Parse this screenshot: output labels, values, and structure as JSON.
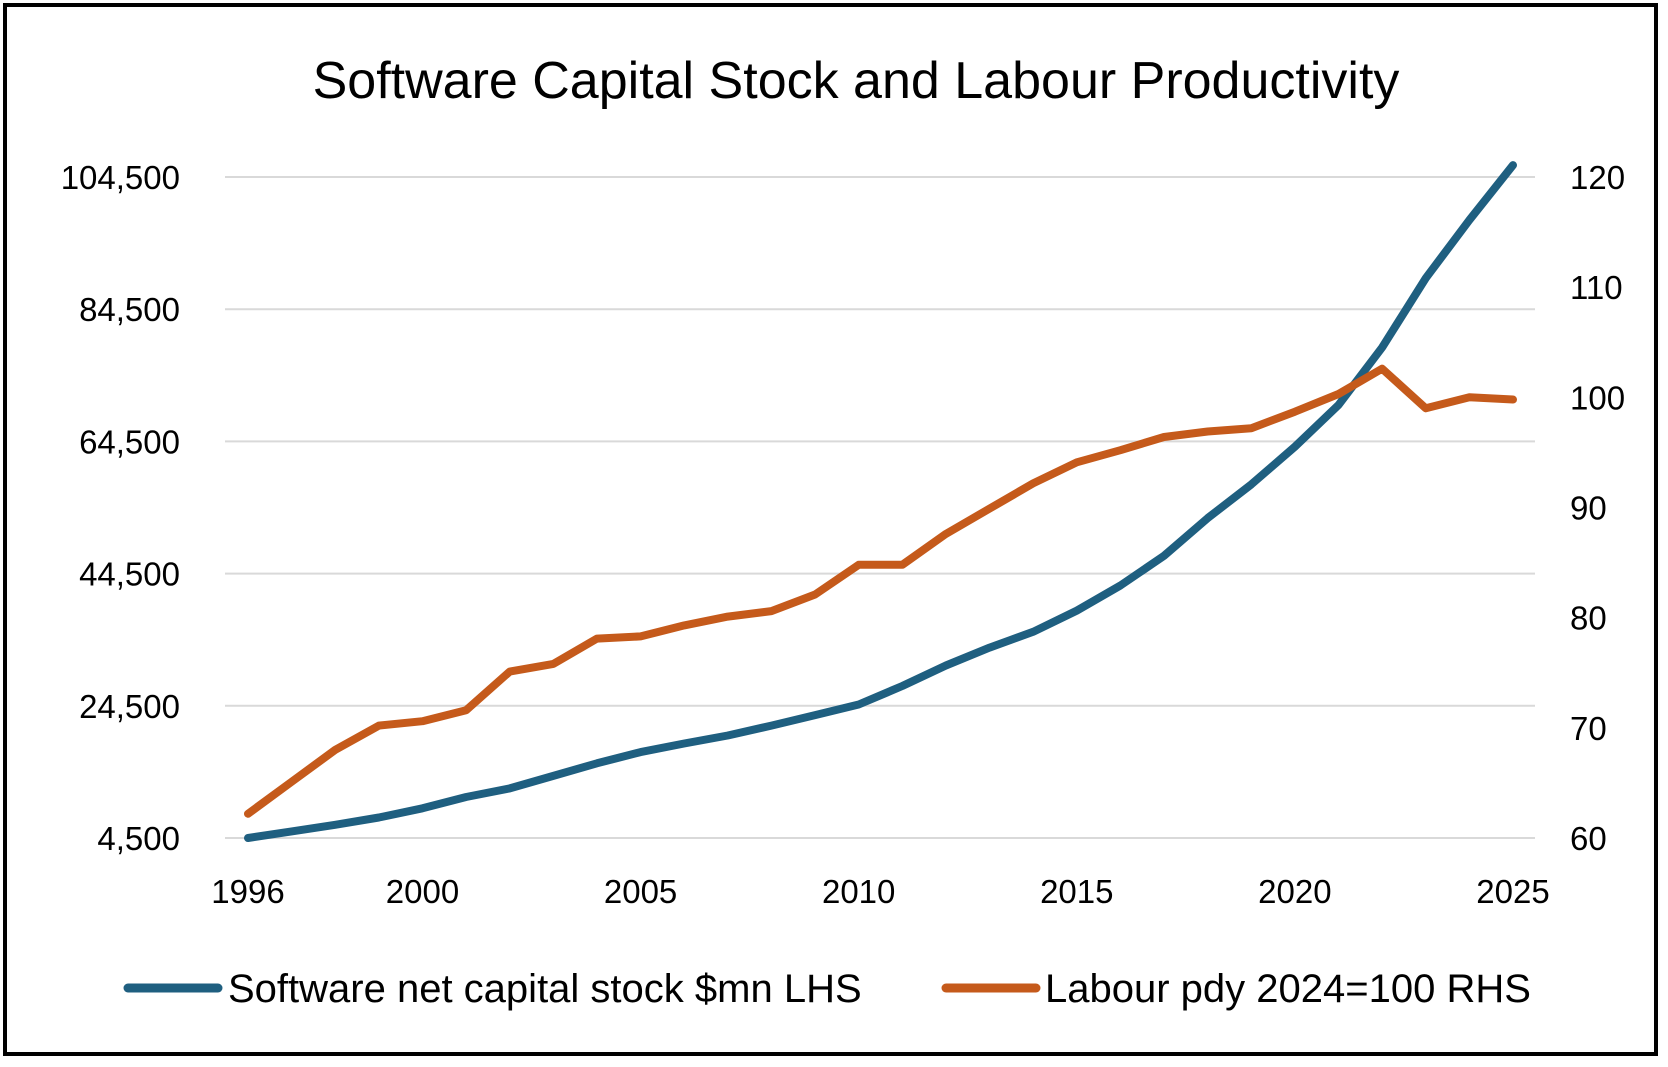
{
  "chart_data": {
    "type": "line",
    "title": "Software Capital Stock and Labour Productivity",
    "x": [
      1996,
      1997,
      1998,
      1999,
      2000,
      2001,
      2002,
      2003,
      2004,
      2005,
      2006,
      2007,
      2008,
      2009,
      2010,
      2011,
      2012,
      2013,
      2014,
      2015,
      2016,
      2017,
      2018,
      2019,
      2020,
      2021,
      2022,
      2023,
      2024,
      2025
    ],
    "x_ticks": [
      1996,
      2000,
      2005,
      2010,
      2015,
      2020,
      2025
    ],
    "x_tick_labels": [
      "1996",
      "2000",
      "2005",
      "2010",
      "2015",
      "2020",
      "2025"
    ],
    "y_left": {
      "ylim": [
        4500,
        104500
      ],
      "ticks": [
        4500,
        24500,
        44500,
        64500,
        84500,
        104500
      ],
      "tick_labels": [
        "4,500",
        "24,500",
        "44,500",
        "64,500",
        "84,500",
        "104,500"
      ]
    },
    "y_right": {
      "ylim": [
        60,
        120
      ],
      "ticks": [
        60,
        70,
        80,
        90,
        100,
        110,
        120
      ],
      "tick_labels": [
        "60",
        "70",
        "80",
        "90",
        "100",
        "110",
        "120"
      ]
    },
    "grid": true,
    "legend_position": "bottom",
    "series": [
      {
        "name": "Software net capital stock $mn LHS",
        "axis": "left",
        "color": "#1f5f80",
        "values": [
          4500,
          5500,
          6500,
          7600,
          9000,
          10700,
          12000,
          13900,
          15800,
          17500,
          18800,
          20000,
          21500,
          23100,
          24700,
          27500,
          30600,
          33300,
          35700,
          38900,
          42700,
          47200,
          52900,
          58000,
          63700,
          70000,
          78700,
          89200,
          98000,
          106300
        ]
      },
      {
        "name": "Labour pdy 2024=100 RHS",
        "axis": "right",
        "color": "#c55a1b",
        "values": [
          62.2,
          65.1,
          68.0,
          70.2,
          70.6,
          71.6,
          75.1,
          75.8,
          78.1,
          78.3,
          79.3,
          80.1,
          80.6,
          82.1,
          84.8,
          84.8,
          87.6,
          89.9,
          92.2,
          94.1,
          95.2,
          96.4,
          96.9,
          97.2,
          98.7,
          100.3,
          102.6,
          99.0,
          100.0,
          99.8
        ]
      }
    ]
  }
}
